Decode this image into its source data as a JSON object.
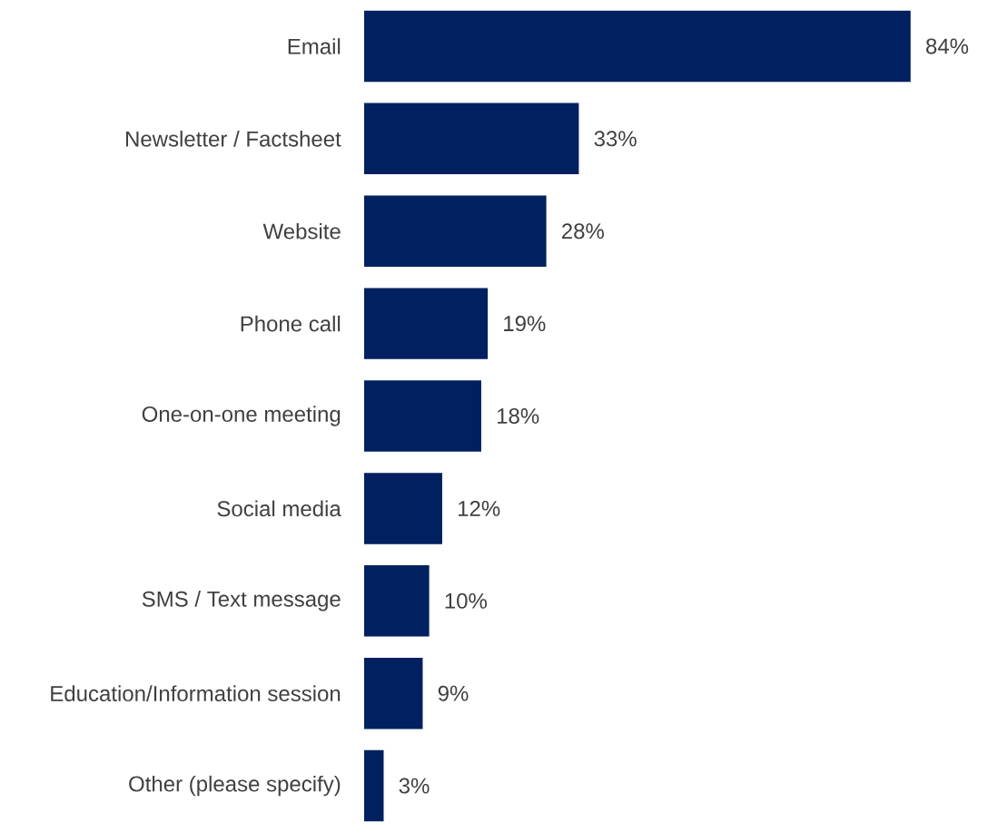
{
  "chart_data": {
    "type": "bar",
    "orientation": "horizontal",
    "categories": [
      "Email",
      "Newsletter / Factsheet",
      "Website",
      "Phone call",
      "One-on-one meeting",
      "Social media",
      "SMS / Text message",
      "Education/Information session",
      "Other (please specify)"
    ],
    "values": [
      84,
      33,
      28,
      19,
      18,
      12,
      10,
      9,
      3
    ],
    "value_labels": [
      "84%",
      "33%",
      "28%",
      "19%",
      "18%",
      "12%",
      "10%",
      "9%",
      "3%"
    ],
    "color": "#002060"
  }
}
